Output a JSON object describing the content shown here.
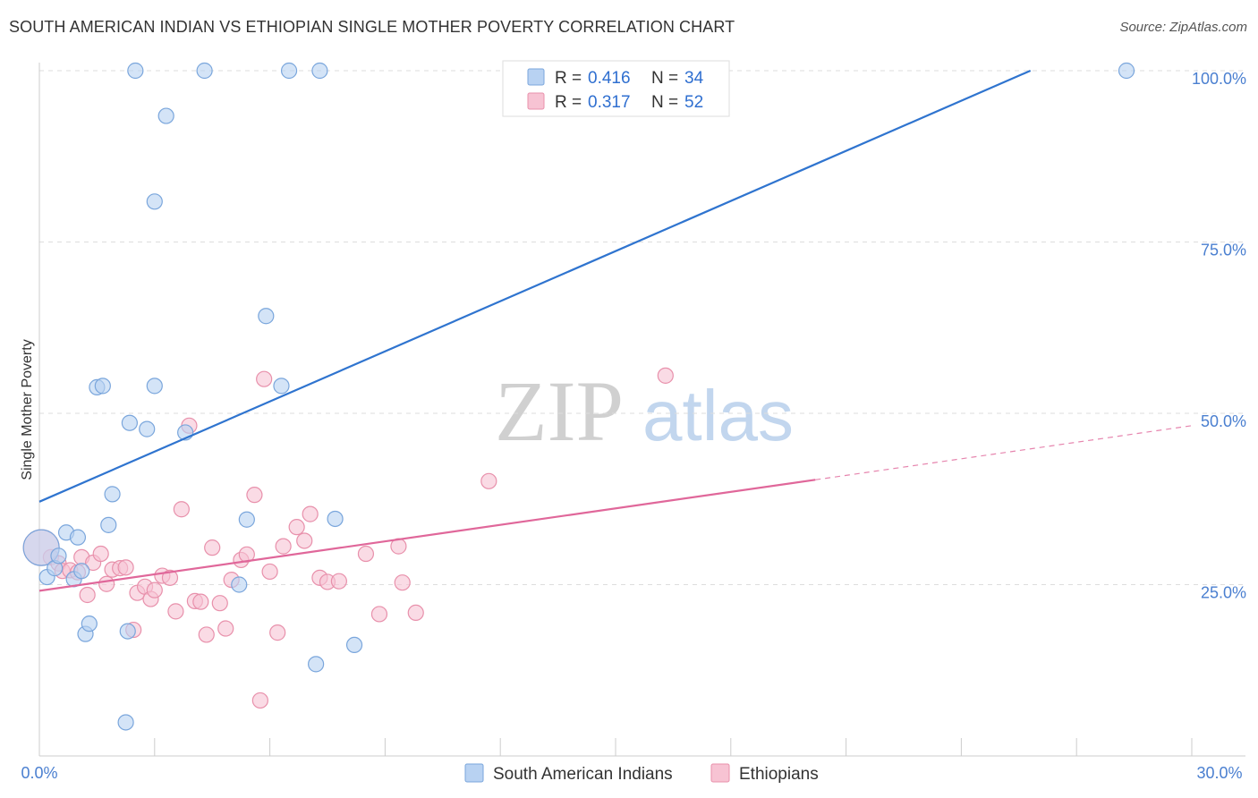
{
  "title": "SOUTH AMERICAN INDIAN VS ETHIOPIAN SINGLE MOTHER POVERTY CORRELATION CHART",
  "source": "Source: ZipAtlas.com",
  "watermark": {
    "zip": "ZIP",
    "atlas": "atlas"
  },
  "colors": {
    "blue_fill": "#b8d2f2",
    "blue_stroke": "#7aa6dc",
    "blue_line": "#2f74cf",
    "pink_fill": "#f7c3d3",
    "pink_stroke": "#e890ab",
    "pink_line": "#e0679a",
    "axis_text": "#4a7fd0",
    "grid": "#dddddd"
  },
  "legend_top": [
    {
      "r_label": "R =",
      "r_value": "0.416",
      "n_label": "N =",
      "n_value": "34"
    },
    {
      "r_label": "R =",
      "r_value": "0.317",
      "n_label": "N =",
      "n_value": "52"
    }
  ],
  "chart_data": {
    "type": "scatter",
    "title": "SOUTH AMERICAN INDIAN VS ETHIOPIAN SINGLE MOTHER POVERTY CORRELATION CHART",
    "xlabel": "",
    "ylabel": "Single Mother Poverty",
    "xlim": [
      0,
      30
    ],
    "ylim": [
      0,
      102
    ],
    "x_tick_labels": [
      "0.0%",
      "30.0%"
    ],
    "y_ticks": [
      25,
      50,
      75,
      100
    ],
    "y_tick_labels": [
      "25.0%",
      "50.0%",
      "75.0%",
      "100.0%"
    ],
    "grid": true,
    "legend_position": "top-center",
    "series": [
      {
        "name": "South American Indians",
        "r": 0.416,
        "n": 34,
        "trend": {
          "x0": 0,
          "y0": 37.1,
          "x1": 25.8,
          "y1": 100.0,
          "dashed_to": null
        },
        "points": [
          {
            "x": 0.05,
            "y": 30.4,
            "big": true
          },
          {
            "x": 0.2,
            "y": 26.1
          },
          {
            "x": 0.4,
            "y": 27.4
          },
          {
            "x": 0.5,
            "y": 29.2
          },
          {
            "x": 0.7,
            "y": 32.6
          },
          {
            "x": 0.9,
            "y": 25.8
          },
          {
            "x": 1.0,
            "y": 31.9
          },
          {
            "x": 1.1,
            "y": 27.0
          },
          {
            "x": 1.2,
            "y": 17.8
          },
          {
            "x": 1.3,
            "y": 19.3
          },
          {
            "x": 1.5,
            "y": 53.8
          },
          {
            "x": 1.65,
            "y": 54.0
          },
          {
            "x": 1.8,
            "y": 33.7
          },
          {
            "x": 1.9,
            "y": 38.2
          },
          {
            "x": 2.25,
            "y": 4.9
          },
          {
            "x": 2.3,
            "y": 18.2
          },
          {
            "x": 2.35,
            "y": 48.6
          },
          {
            "x": 2.5,
            "y": 100.0
          },
          {
            "x": 2.8,
            "y": 47.7
          },
          {
            "x": 3.0,
            "y": 54.0
          },
          {
            "x": 3.0,
            "y": 80.9
          },
          {
            "x": 3.3,
            "y": 93.4
          },
          {
            "x": 3.8,
            "y": 47.2
          },
          {
            "x": 4.3,
            "y": 100.0
          },
          {
            "x": 5.2,
            "y": 25.0
          },
          {
            "x": 5.4,
            "y": 34.5
          },
          {
            "x": 5.9,
            "y": 64.2
          },
          {
            "x": 6.3,
            "y": 54.0
          },
          {
            "x": 6.5,
            "y": 100.0
          },
          {
            "x": 7.2,
            "y": 13.4
          },
          {
            "x": 7.3,
            "y": 100.0
          },
          {
            "x": 7.7,
            "y": 34.6
          },
          {
            "x": 8.2,
            "y": 16.2
          },
          {
            "x": 28.3,
            "y": 100.0
          }
        ]
      },
      {
        "name": "Ethiopians",
        "r": 0.317,
        "n": 52,
        "trend": {
          "x0": 0,
          "y0": 24.1,
          "x1": 20.2,
          "y1": 40.3,
          "dashed_to": {
            "x": 30,
            "y": 48.2
          }
        },
        "points": [
          {
            "x": 0.3,
            "y": 29.0
          },
          {
            "x": 0.5,
            "y": 28.1
          },
          {
            "x": 0.6,
            "y": 27.0
          },
          {
            "x": 0.8,
            "y": 27.1
          },
          {
            "x": 1.0,
            "y": 26.8
          },
          {
            "x": 1.1,
            "y": 29.0
          },
          {
            "x": 1.25,
            "y": 23.5
          },
          {
            "x": 1.4,
            "y": 28.2
          },
          {
            "x": 1.6,
            "y": 29.5
          },
          {
            "x": 1.75,
            "y": 25.1
          },
          {
            "x": 1.9,
            "y": 27.2
          },
          {
            "x": 2.1,
            "y": 27.4
          },
          {
            "x": 2.25,
            "y": 27.5
          },
          {
            "x": 2.45,
            "y": 18.4
          },
          {
            "x": 2.55,
            "y": 23.8
          },
          {
            "x": 2.75,
            "y": 24.7
          },
          {
            "x": 2.9,
            "y": 22.9
          },
          {
            "x": 3.0,
            "y": 24.2
          },
          {
            "x": 3.2,
            "y": 26.3
          },
          {
            "x": 3.4,
            "y": 26.0
          },
          {
            "x": 3.55,
            "y": 21.1
          },
          {
            "x": 3.7,
            "y": 36.0
          },
          {
            "x": 3.9,
            "y": 48.2
          },
          {
            "x": 4.05,
            "y": 22.6
          },
          {
            "x": 4.2,
            "y": 22.5
          },
          {
            "x": 4.35,
            "y": 17.7
          },
          {
            "x": 4.5,
            "y": 30.4
          },
          {
            "x": 4.7,
            "y": 22.3
          },
          {
            "x": 4.85,
            "y": 18.6
          },
          {
            "x": 5.0,
            "y": 25.7
          },
          {
            "x": 5.25,
            "y": 28.6
          },
          {
            "x": 5.4,
            "y": 29.4
          },
          {
            "x": 5.6,
            "y": 38.1
          },
          {
            "x": 5.75,
            "y": 8.1
          },
          {
            "x": 5.85,
            "y": 55.0
          },
          {
            "x": 6.0,
            "y": 26.9
          },
          {
            "x": 6.2,
            "y": 18.0
          },
          {
            "x": 6.35,
            "y": 30.6
          },
          {
            "x": 6.7,
            "y": 33.4
          },
          {
            "x": 6.9,
            "y": 31.4
          },
          {
            "x": 7.05,
            "y": 35.3
          },
          {
            "x": 7.3,
            "y": 26.0
          },
          {
            "x": 7.5,
            "y": 25.4
          },
          {
            "x": 7.8,
            "y": 25.5
          },
          {
            "x": 8.5,
            "y": 29.5
          },
          {
            "x": 8.85,
            "y": 20.7
          },
          {
            "x": 9.35,
            "y": 30.6
          },
          {
            "x": 9.45,
            "y": 25.3
          },
          {
            "x": 9.8,
            "y": 20.9
          },
          {
            "x": 11.7,
            "y": 40.1
          },
          {
            "x": 16.3,
            "y": 55.5
          },
          {
            "x": 0.05,
            "y": 30.4,
            "big": true
          }
        ]
      }
    ]
  }
}
